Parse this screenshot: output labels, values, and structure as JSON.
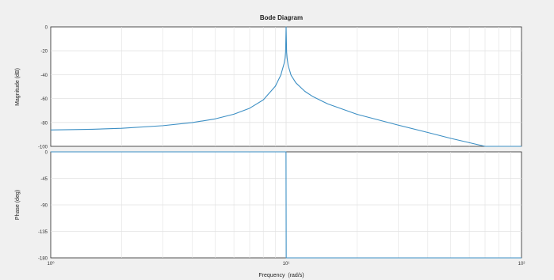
{
  "colors": {
    "figure_background": "#f0f0f0",
    "axes_background": "#ffffff",
    "grid": "#e2e2e2",
    "axis_line": "#262626",
    "trace": "#3c8fc4"
  },
  "chart_data": [
    {
      "type": "line",
      "title": "Bode Diagram",
      "ylabel": "Magnitude (dB)",
      "xlabel": "",
      "xscale": "log",
      "xlim": [
        1,
        100
      ],
      "ylim": [
        -100,
        0
      ],
      "yticks": [
        0,
        -20,
        -40,
        -60,
        -80,
        -100
      ],
      "ytick_labels": [
        "0",
        "-20",
        "-40",
        "-60",
        "-80",
        "-100"
      ],
      "grid": true,
      "series": [
        {
          "x": [
            1,
            1.5,
            2,
            3,
            4,
            5,
            6,
            7,
            8,
            9,
            9.5,
            9.8,
            9.9,
            9.95,
            10,
            10.05,
            10.1,
            10.2,
            10.5,
            11,
            12,
            13,
            15,
            20,
            30,
            40,
            50,
            70,
            100
          ],
          "y": [
            -86.3,
            -85.7,
            -84.9,
            -82.7,
            -80.1,
            -77.0,
            -73.1,
            -68.1,
            -61.1,
            -49.7,
            -40.2,
            -30.8,
            -26.2,
            -20.9,
            0,
            -21.0,
            -26.1,
            -32.3,
            -40.5,
            -46.8,
            -53.9,
            -58.4,
            -64.4,
            -73.2,
            -82.3,
            -88.4,
            -93.3,
            -100.8,
            -108.4
          ]
        }
      ]
    },
    {
      "type": "line",
      "ylabel": "Phase (deg)",
      "xlabel": "Frequency  (rad/s)",
      "xscale": "log",
      "xlim": [
        1,
        100
      ],
      "ylim": [
        -180,
        0
      ],
      "yticks": [
        0,
        -45,
        -90,
        -135,
        -180
      ],
      "ytick_labels": [
        "0",
        "-45",
        "-90",
        "-135",
        "-180"
      ],
      "xticks": [
        1,
        10,
        100
      ],
      "xtick_labels": [
        "10⁰",
        "10¹",
        "10²"
      ],
      "grid": true,
      "series": [
        {
          "x": [
            1,
            9.9,
            9.99,
            10.01,
            10.1,
            100
          ],
          "y": [
            0,
            0,
            0,
            -180,
            -180,
            -180
          ]
        }
      ]
    }
  ]
}
